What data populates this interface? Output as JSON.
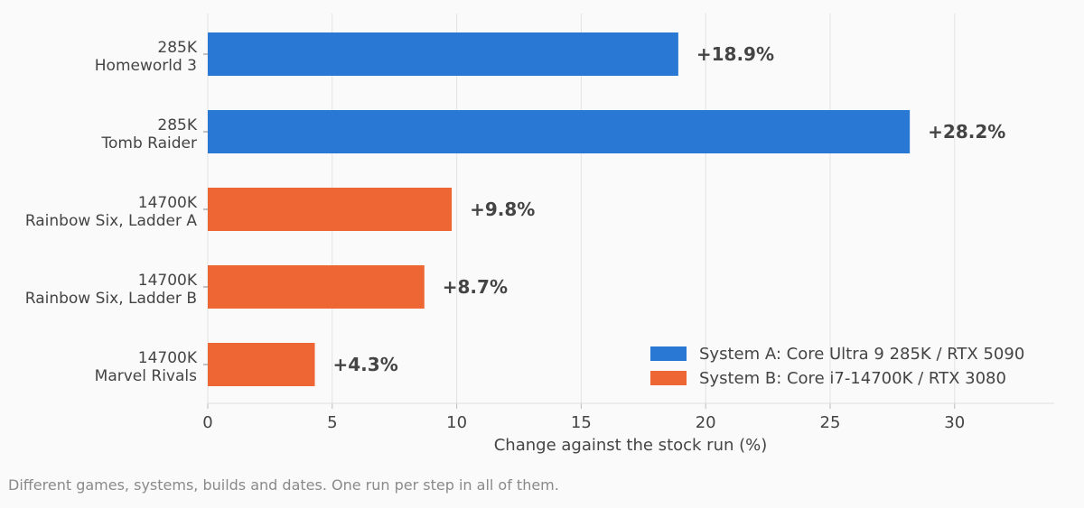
{
  "chart_data": {
    "type": "bar",
    "orientation": "horizontal",
    "categories": [
      [
        "285K",
        "Homeworld 3"
      ],
      [
        "285K",
        "Tomb Raider"
      ],
      [
        "14700K",
        "Rainbow Six, Ladder A"
      ],
      [
        "14700K",
        "Rainbow Six, Ladder B"
      ],
      [
        "14700K",
        "Marvel Rivals"
      ]
    ],
    "values": [
      18.9,
      28.2,
      9.8,
      8.7,
      4.3
    ],
    "data_labels": [
      "+18.9%",
      "+28.2%",
      "+9.8%",
      "+8.7%",
      "+4.3%"
    ],
    "bar_series": [
      0,
      0,
      1,
      1,
      1
    ],
    "series": [
      {
        "name": "System A: Core Ultra 9 285K / RTX 5090",
        "color": "#2878d4"
      },
      {
        "name": "System B: Core i7-14700K / RTX 3080",
        "color": "#ee6633"
      }
    ],
    "xlabel": "Change against the stock run (%)",
    "xlim": [
      0,
      34
    ],
    "xticks": [
      0,
      5,
      10,
      15,
      20,
      25,
      30
    ],
    "grid": "vertical",
    "legend": "bottom-right"
  },
  "footnote": "Different games, systems, builds and dates. One run per step in all of them."
}
